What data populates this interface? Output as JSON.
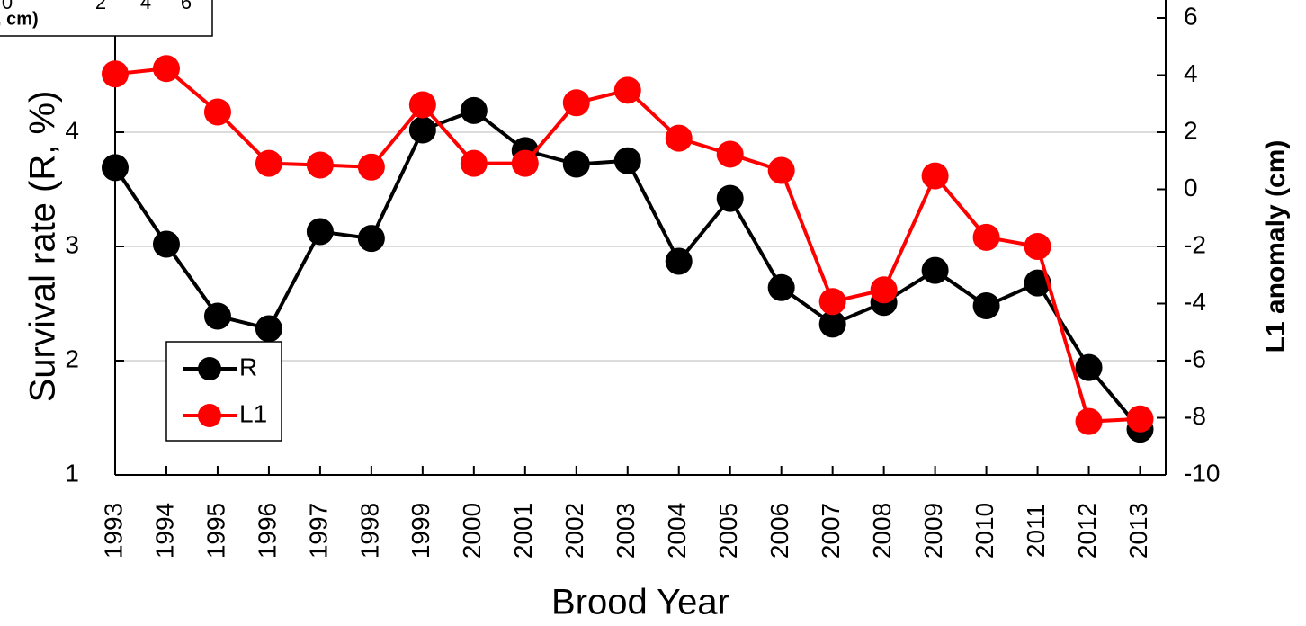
{
  "chart_data": {
    "type": "line",
    "x_label": "Brood Year",
    "y_label": "Survival rate (R, %)",
    "y2_label": "L1 anomaly (cm)",
    "x": [
      1993,
      1994,
      1995,
      1996,
      1997,
      1998,
      1999,
      2000,
      2001,
      2002,
      2003,
      2004,
      2005,
      2006,
      2007,
      2008,
      2009,
      2010,
      2011,
      2012,
      2013
    ],
    "xlim": [
      1993,
      2013.5
    ],
    "ylim": [
      1,
      5
    ],
    "yticks": [
      1,
      2,
      3,
      4
    ],
    "y2lim": [
      -10,
      6
    ],
    "y2ticks": [
      -10,
      -8,
      -6,
      -4,
      -2,
      0,
      2,
      4,
      6
    ],
    "grid": true,
    "legend": "lower left",
    "series": [
      {
        "name": "R",
        "color": "#000000",
        "values": [
          3.69,
          3.02,
          2.39,
          2.28,
          3.13,
          3.07,
          4.02,
          4.19,
          3.84,
          3.72,
          3.75,
          2.87,
          3.42,
          2.64,
          2.32,
          2.51,
          2.79,
          2.48,
          2.68,
          1.94,
          1.4
        ]
      },
      {
        "name": "L1",
        "color": "#ff0000",
        "axis": "y2",
        "values": [
          4.04,
          4.23,
          2.71,
          0.91,
          0.85,
          0.78,
          2.96,
          0.91,
          0.91,
          3.03,
          3.47,
          1.79,
          1.23,
          0.66,
          -3.93,
          -3.52,
          0.47,
          -1.68,
          -2.0,
          -8.13,
          -8.04
        ]
      }
    ]
  },
  "inset": {
    "label": ", cm)",
    "ticks": [
      "0",
      "2",
      "4",
      "6"
    ]
  }
}
